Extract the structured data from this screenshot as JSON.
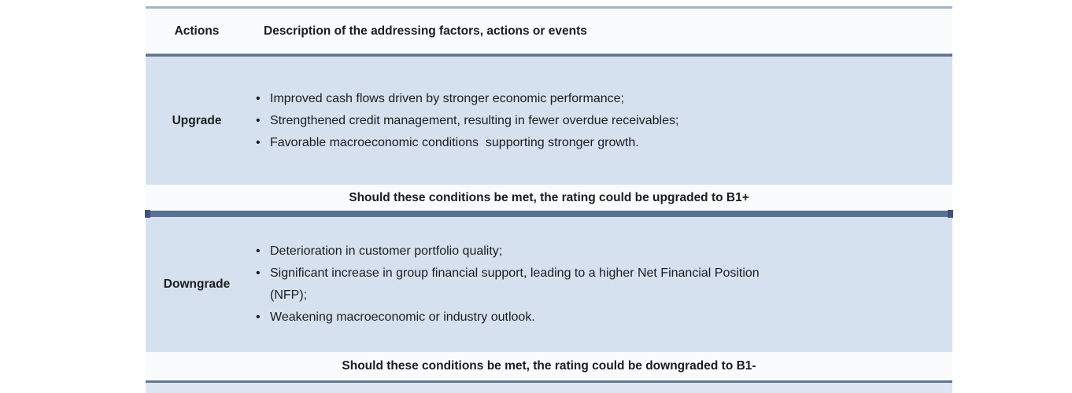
{
  "table": {
    "bullet_glyph": "•",
    "header": {
      "actions": "Actions",
      "description": "Description of the addressing factors, actions or events"
    },
    "rows": [
      {
        "action": "Upgrade",
        "bullets": [
          "Improved cash flows driven by stronger economic performance;",
          "Strengthened credit management, resulting in fewer overdue receivables;",
          "Favorable macroeconomic conditions  supporting stronger growth."
        ],
        "note": "Should these conditions be met, the rating could be upgraded to B1+"
      },
      {
        "action": "Downgrade",
        "bullets": [
          "Deterioration in customer portfolio quality;",
          "Significant increase in group financial support, leading to a higher Net Financial Position\n(NFP);",
          "Weakening macroeconomic or industry outlook."
        ],
        "note": "Should these conditions be met, the rating could be downgraded to B1-"
      }
    ],
    "colors": {
      "body_row_bg": "#d6e1f0",
      "header_note_bg": "#f9fbfd",
      "top_line": "#a4b4c3",
      "header_underline": "#5e768f",
      "thick_divider": "#5a7191",
      "divider_cap": "#3e537a",
      "bottom_line": "#5e768f",
      "next_row_strip": "#dce5f1",
      "text": "#1c1c1c"
    }
  }
}
